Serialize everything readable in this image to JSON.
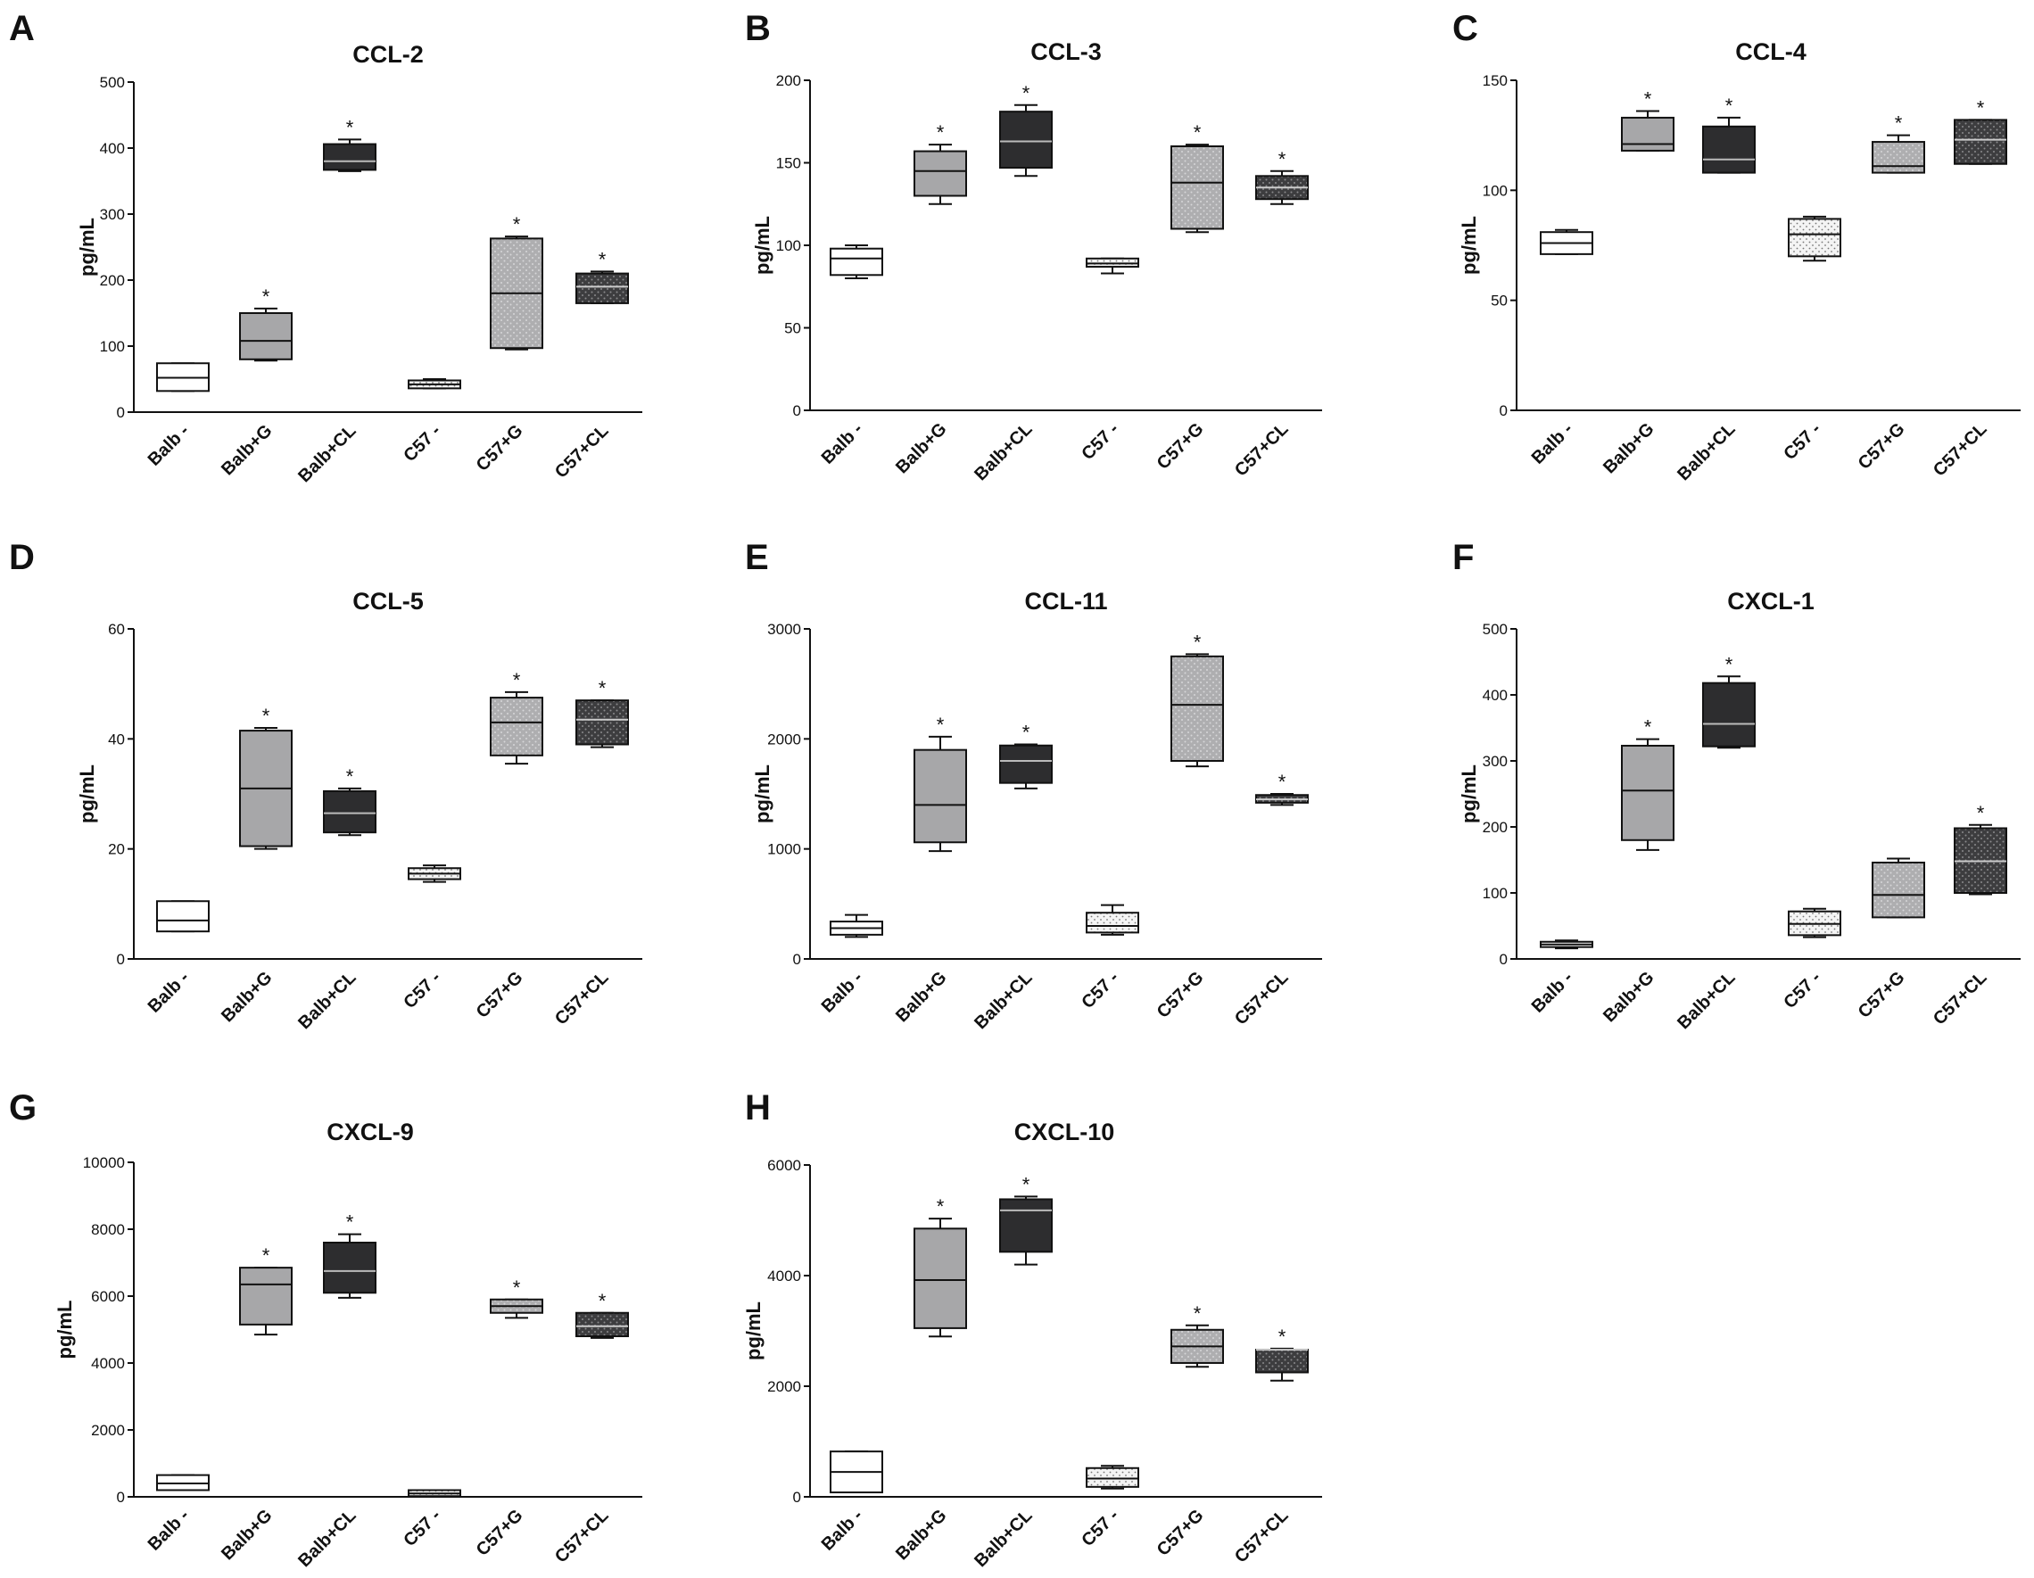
{
  "fill_colors": {
    "white": "#ffffff",
    "light_dots": "#f4f4f4",
    "gray": "#a7a7a9",
    "dark": "#2d2d2f",
    "gray_dots": "#aeaeb0",
    "dark_dots": "#3d3d3f"
  },
  "chart_data": [
    {
      "panel": "A",
      "type": "box",
      "title": "CCL-2",
      "ylabel": "pg/mL",
      "ylim": [
        0,
        500
      ],
      "yticks": [
        "0",
        "100",
        "200",
        "300",
        "400",
        "500"
      ],
      "categories": [
        "Balb -",
        "Balb+G",
        "Balb+CL",
        "C57 -",
        "C57+G",
        "C57+CL"
      ],
      "boxes": [
        {
          "min": 32,
          "q1": 32,
          "median": 52,
          "q3": 74,
          "max": 74,
          "sig": ""
        },
        {
          "min": 78,
          "q1": 80,
          "median": 108,
          "q3": 150,
          "max": 157,
          "sig": "*"
        },
        {
          "min": 365,
          "q1": 367,
          "median": 380,
          "q3": 406,
          "max": 413,
          "sig": "*"
        },
        {
          "min": 36,
          "q1": 36,
          "median": 42,
          "q3": 48,
          "max": 50,
          "sig": ""
        },
        {
          "min": 95,
          "q1": 97,
          "median": 180,
          "q3": 263,
          "max": 266,
          "sig": "*"
        },
        {
          "min": 165,
          "q1": 165,
          "median": 190,
          "q3": 210,
          "max": 213,
          "sig": "*"
        }
      ]
    },
    {
      "panel": "B",
      "type": "box",
      "title": "CCL-3",
      "ylabel": "pg/mL",
      "ylim": [
        0,
        200
      ],
      "yticks": [
        "0",
        "50",
        "100",
        "150",
        "200"
      ],
      "categories": [
        "Balb -",
        "Balb+G",
        "Balb+CL",
        "C57 -",
        "C57+G",
        "C57+CL"
      ],
      "boxes": [
        {
          "min": 80,
          "q1": 82,
          "median": 92,
          "q3": 98,
          "max": 100,
          "sig": ""
        },
        {
          "min": 125,
          "q1": 130,
          "median": 145,
          "q3": 157,
          "max": 161,
          "sig": "*"
        },
        {
          "min": 142,
          "q1": 147,
          "median": 163,
          "q3": 181,
          "max": 185,
          "sig": "*"
        },
        {
          "min": 83,
          "q1": 87,
          "median": 89,
          "q3": 92,
          "max": 92,
          "sig": ""
        },
        {
          "min": 108,
          "q1": 110,
          "median": 138,
          "q3": 160,
          "max": 161,
          "sig": "*"
        },
        {
          "min": 125,
          "q1": 128,
          "median": 135,
          "q3": 142,
          "max": 145,
          "sig": "*"
        }
      ]
    },
    {
      "panel": "C",
      "type": "box",
      "title": "CCL-4",
      "ylabel": "pg/mL",
      "ylim": [
        0,
        150
      ],
      "yticks": [
        "0",
        "50",
        "100",
        "150"
      ],
      "categories": [
        "Balb -",
        "Balb+G",
        "Balb+CL",
        "C57 -",
        "C57+G",
        "C57+CL"
      ],
      "boxes": [
        {
          "min": 71,
          "q1": 71,
          "median": 76,
          "q3": 81,
          "max": 82,
          "sig": ""
        },
        {
          "min": 118,
          "q1": 118,
          "median": 121,
          "q3": 133,
          "max": 136,
          "sig": "*"
        },
        {
          "min": 108,
          "q1": 108,
          "median": 114,
          "q3": 129,
          "max": 133,
          "sig": "*"
        },
        {
          "min": 68,
          "q1": 70,
          "median": 80,
          "q3": 87,
          "max": 88,
          "sig": ""
        },
        {
          "min": 108,
          "q1": 108,
          "median": 111,
          "q3": 122,
          "max": 125,
          "sig": "*"
        },
        {
          "min": 112,
          "q1": 112,
          "median": 123,
          "q3": 132,
          "max": 132,
          "sig": "*"
        }
      ]
    },
    {
      "panel": "D",
      "type": "box",
      "title": "CCL-5",
      "ylabel": "pg/mL",
      "ylim": [
        0,
        60
      ],
      "yticks": [
        "0",
        "20",
        "40",
        "60"
      ],
      "categories": [
        "Balb -",
        "Balb+G",
        "Balb+CL",
        "C57 -",
        "C57+G",
        "C57+CL"
      ],
      "boxes": [
        {
          "min": 5,
          "q1": 5,
          "median": 7,
          "q3": 10.5,
          "max": 10.5,
          "sig": ""
        },
        {
          "min": 20,
          "q1": 20.5,
          "median": 31,
          "q3": 41.5,
          "max": 42,
          "sig": "*"
        },
        {
          "min": 22.5,
          "q1": 23,
          "median": 26.5,
          "q3": 30.5,
          "max": 31,
          "sig": "*"
        },
        {
          "min": 14,
          "q1": 14.5,
          "median": 15.5,
          "q3": 16.5,
          "max": 17,
          "sig": ""
        },
        {
          "min": 35.5,
          "q1": 37,
          "median": 43,
          "q3": 47.5,
          "max": 48.5,
          "sig": "*"
        },
        {
          "min": 38.5,
          "q1": 39,
          "median": 43.5,
          "q3": 47,
          "max": 47,
          "sig": "*"
        }
      ]
    },
    {
      "panel": "E",
      "type": "box",
      "title": "CCL-11",
      "ylabel": "pg/mL",
      "ylim": [
        0,
        3000
      ],
      "yticks": [
        "0",
        "1000",
        "2000",
        "3000"
      ],
      "categories": [
        "Balb -",
        "Balb+G",
        "Balb+CL",
        "C57 -",
        "C57+G",
        "C57+CL"
      ],
      "boxes": [
        {
          "min": 200,
          "q1": 220,
          "median": 280,
          "q3": 340,
          "max": 400,
          "sig": ""
        },
        {
          "min": 980,
          "q1": 1060,
          "median": 1400,
          "q3": 1900,
          "max": 2020,
          "sig": "*"
        },
        {
          "min": 1550,
          "q1": 1600,
          "median": 1800,
          "q3": 1940,
          "max": 1950,
          "sig": "*"
        },
        {
          "min": 220,
          "q1": 240,
          "median": 300,
          "q3": 420,
          "max": 490,
          "sig": ""
        },
        {
          "min": 1750,
          "q1": 1800,
          "median": 2310,
          "q3": 2750,
          "max": 2770,
          "sig": "*"
        },
        {
          "min": 1400,
          "q1": 1420,
          "median": 1450,
          "q3": 1490,
          "max": 1500,
          "sig": "*"
        }
      ]
    },
    {
      "panel": "F",
      "type": "box",
      "title": "CXCL-1",
      "ylabel": "pg/mL",
      "ylim": [
        0,
        500
      ],
      "yticks": [
        "0",
        "100",
        "200",
        "300",
        "400",
        "500"
      ],
      "categories": [
        "Balb -",
        "Balb+G",
        "Balb+CL",
        "C57 -",
        "C57+G",
        "C57+CL"
      ],
      "boxes": [
        {
          "min": 16,
          "q1": 18,
          "median": 22,
          "q3": 26,
          "max": 28,
          "sig": ""
        },
        {
          "min": 165,
          "q1": 180,
          "median": 255,
          "q3": 323,
          "max": 333,
          "sig": "*"
        },
        {
          "min": 320,
          "q1": 322,
          "median": 356,
          "q3": 418,
          "max": 428,
          "sig": "*"
        },
        {
          "min": 33,
          "q1": 36,
          "median": 53,
          "q3": 72,
          "max": 76,
          "sig": ""
        },
        {
          "min": 63,
          "q1": 63,
          "median": 97,
          "q3": 146,
          "max": 152,
          "sig": ""
        },
        {
          "min": 98,
          "q1": 100,
          "median": 148,
          "q3": 198,
          "max": 203,
          "sig": "*"
        }
      ]
    },
    {
      "panel": "G",
      "type": "box",
      "title": "CXCL-9",
      "ylabel": "pg/mL",
      "ylim": [
        0,
        10000
      ],
      "yticks": [
        "0",
        "2000",
        "4000",
        "6000",
        "8000",
        "10000"
      ],
      "categories": [
        "Balb -",
        "Balb+G",
        "Balb+CL",
        "C57 -",
        "C57+G",
        "C57+CL"
      ],
      "boxes": [
        {
          "min": 200,
          "q1": 200,
          "median": 400,
          "q3": 650,
          "max": 650,
          "sig": ""
        },
        {
          "min": 4850,
          "q1": 5150,
          "median": 6350,
          "q3": 6850,
          "max": 6850,
          "sig": "*"
        },
        {
          "min": 5950,
          "q1": 6100,
          "median": 6750,
          "q3": 7600,
          "max": 7850,
          "sig": "*"
        },
        {
          "min": 0,
          "q1": 20,
          "median": 100,
          "q3": 200,
          "max": 200,
          "sig": ""
        },
        {
          "min": 5350,
          "q1": 5500,
          "median": 5700,
          "q3": 5900,
          "max": 5900,
          "sig": "*"
        },
        {
          "min": 4750,
          "q1": 4800,
          "median": 5100,
          "q3": 5500,
          "max": 5500,
          "sig": "*"
        }
      ]
    },
    {
      "panel": "H",
      "type": "box",
      "title": "CXCL-10",
      "ylabel": "pg/mL",
      "ylim": [
        0,
        6000
      ],
      "yticks": [
        "0",
        "2000",
        "4000",
        "6000"
      ],
      "categories": [
        "Balb -",
        "Balb+G",
        "Balb+CL",
        "C57 -",
        "C57+G",
        "C57+CL"
      ],
      "boxes": [
        {
          "min": 80,
          "q1": 80,
          "median": 450,
          "q3": 820,
          "max": 820,
          "sig": ""
        },
        {
          "min": 2900,
          "q1": 3050,
          "median": 3920,
          "q3": 4850,
          "max": 5030,
          "sig": "*"
        },
        {
          "min": 4200,
          "q1": 4430,
          "median": 5180,
          "q3": 5380,
          "max": 5430,
          "sig": "*"
        },
        {
          "min": 150,
          "q1": 180,
          "median": 330,
          "q3": 520,
          "max": 560,
          "sig": ""
        },
        {
          "min": 2350,
          "q1": 2420,
          "median": 2720,
          "q3": 3020,
          "max": 3100,
          "sig": "*"
        },
        {
          "min": 2100,
          "q1": 2250,
          "median": 2660,
          "q3": 2660,
          "max": 2680,
          "sig": "*"
        }
      ]
    }
  ]
}
